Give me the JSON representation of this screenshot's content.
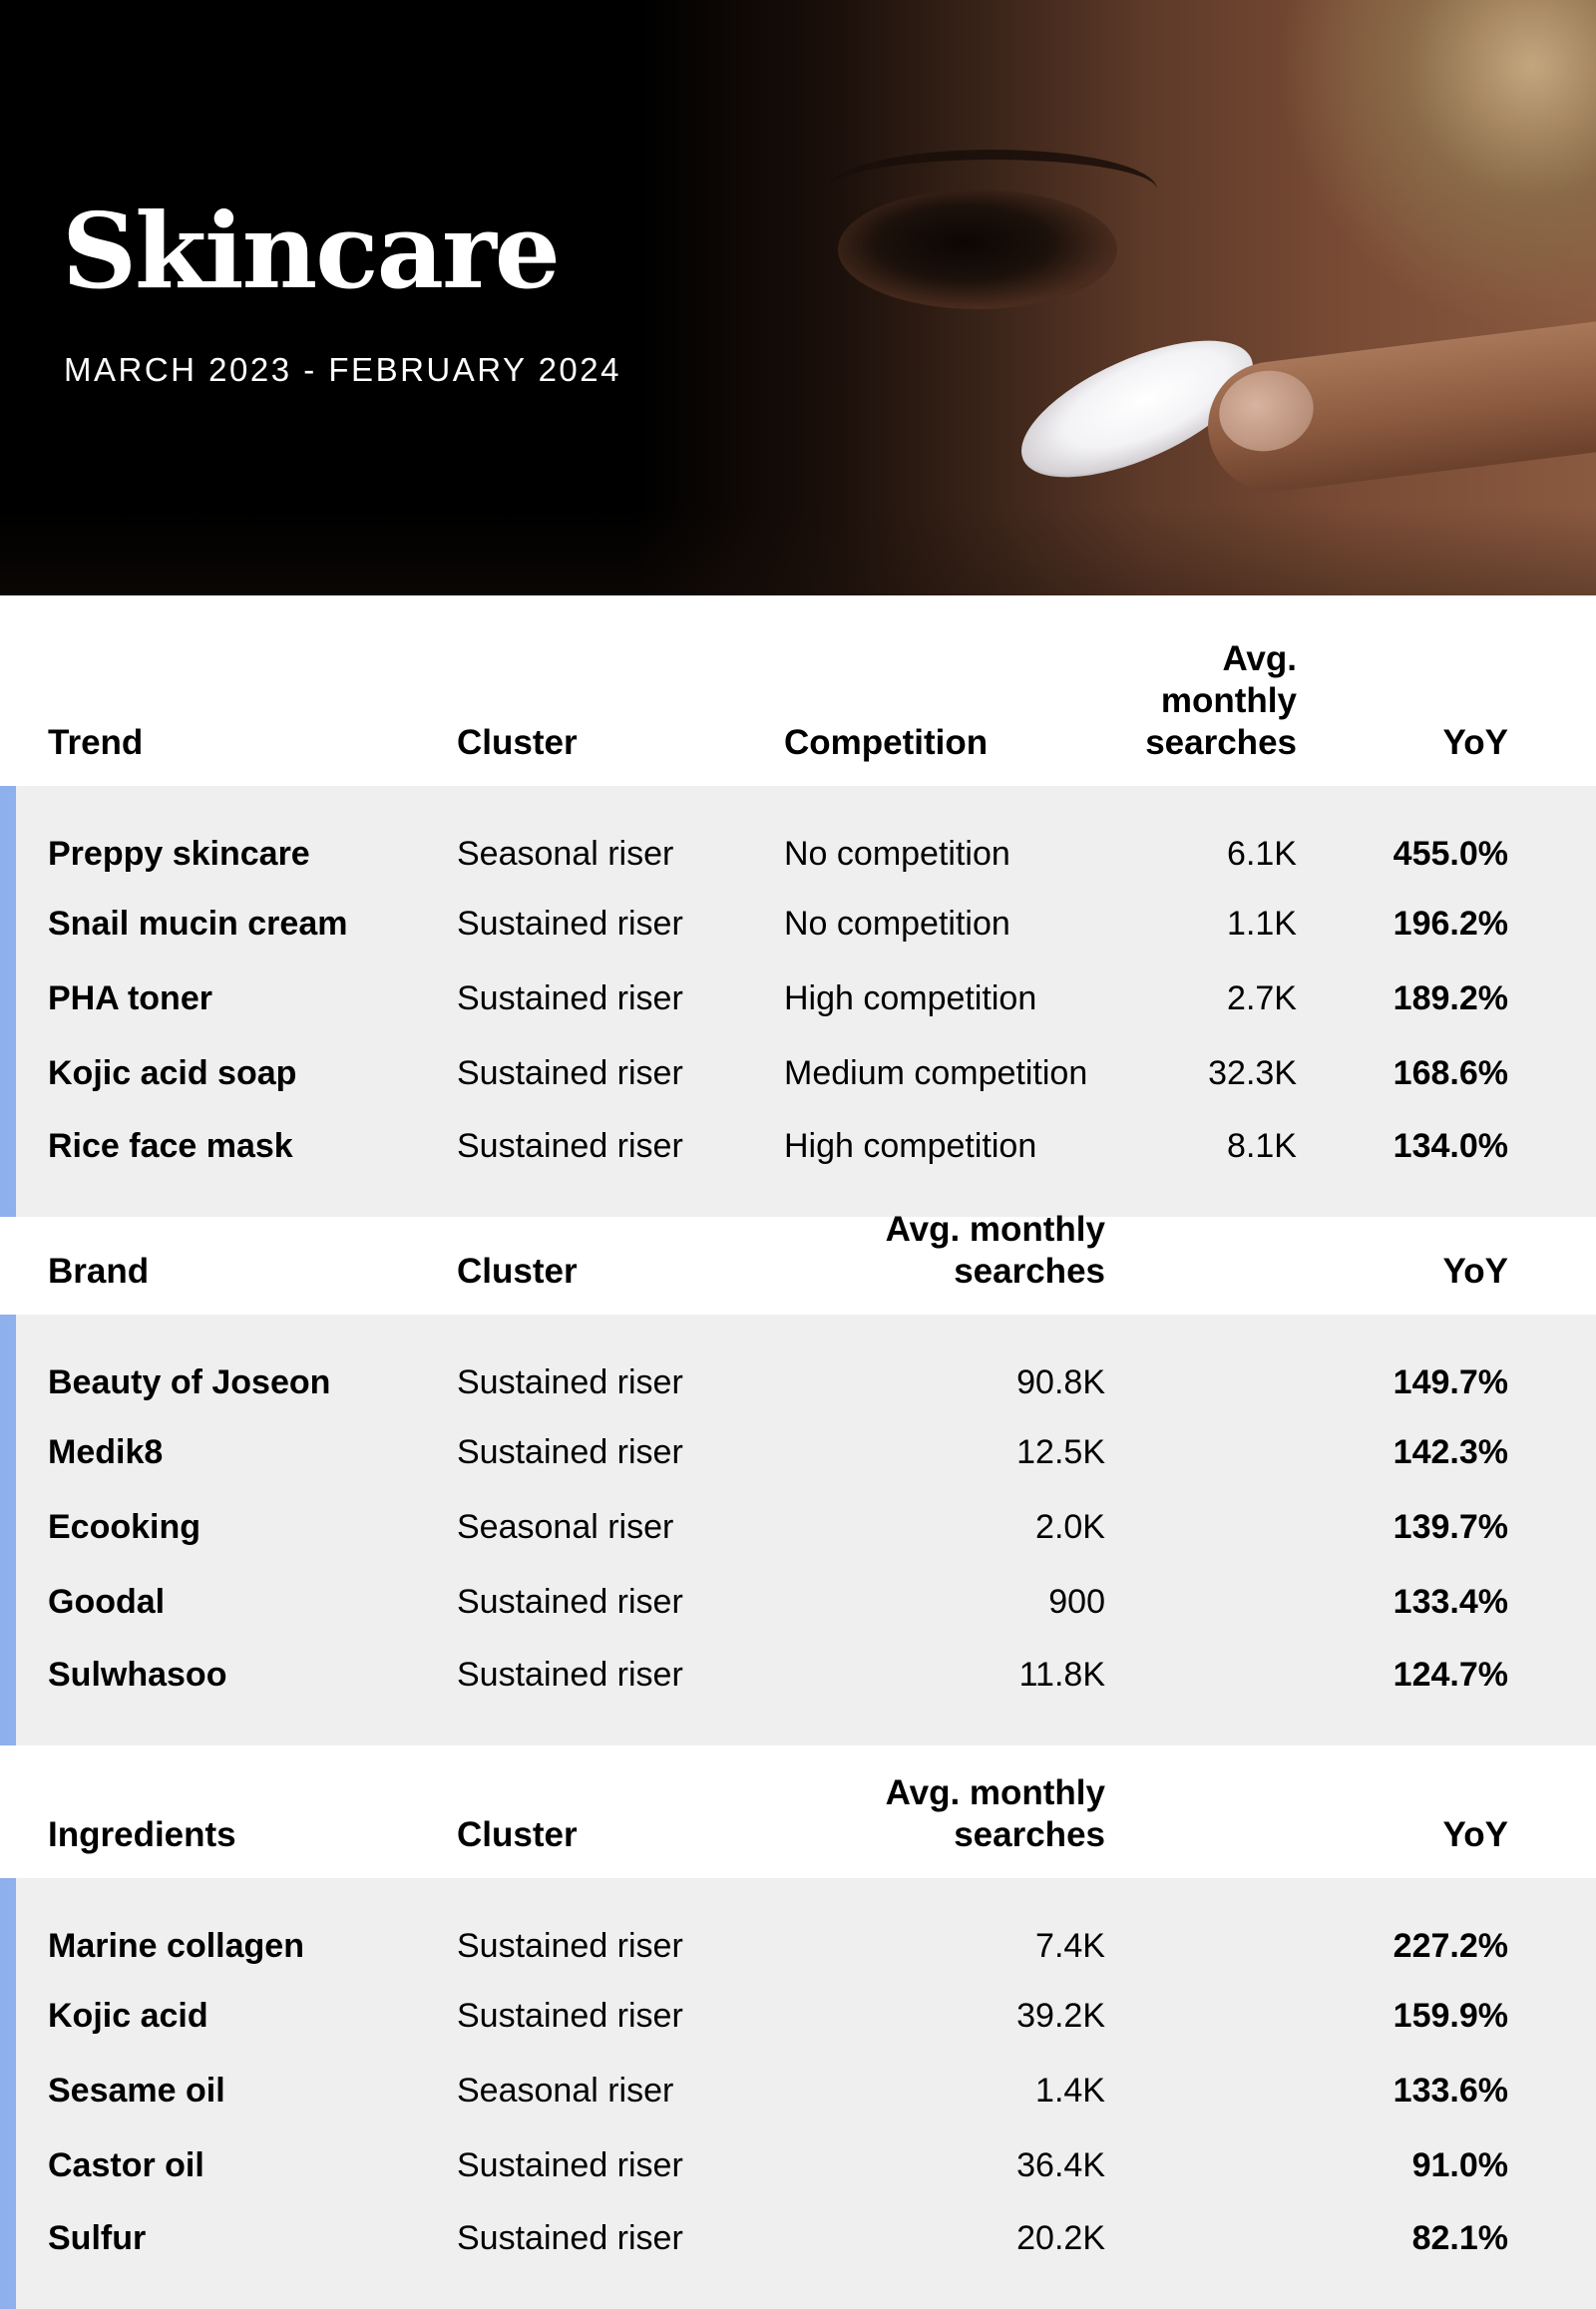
{
  "header": {
    "title": "Skincare",
    "subtitle": "MARCH 2023 - FEBRUARY 2024"
  },
  "colors": {
    "accent_bar": "#8eb0ec",
    "row_background": "#efefef",
    "hero_background": "#000000"
  },
  "trends": {
    "headers": [
      "Trend",
      "Cluster",
      "Competition",
      "Avg. monthly",
      "searches",
      "YoY"
    ],
    "rows": [
      [
        "Preppy skincare",
        "Seasonal riser",
        "No competition",
        "6.1K",
        "455.0%"
      ],
      [
        "Snail mucin cream",
        "Sustained riser",
        "No competition",
        "1.1K",
        "196.2%"
      ],
      [
        "PHA toner",
        "Sustained riser",
        "High competition",
        "2.7K",
        "189.2%"
      ],
      [
        "Kojic acid soap",
        "Sustained riser",
        "Medium competition",
        "32.3K",
        "168.6%"
      ],
      [
        "Rice face mask",
        "Sustained riser",
        "High competition",
        "8.1K",
        "134.0%"
      ]
    ]
  },
  "brands": {
    "headers": [
      "Brand",
      "Cluster",
      "Avg. monthly",
      "searches",
      "YoY"
    ],
    "rows": [
      [
        "Beauty of Joseon",
        "Sustained riser",
        "90.8K",
        "149.7%"
      ],
      [
        "Medik8",
        "Sustained riser",
        "12.5K",
        "142.3%"
      ],
      [
        "Ecooking",
        "Seasonal riser",
        "2.0K",
        "139.7%"
      ],
      [
        "Goodal",
        "Sustained riser",
        "900",
        "133.4%"
      ],
      [
        "Sulwhasoo",
        "Sustained riser",
        "11.8K",
        "124.7%"
      ]
    ]
  },
  "ingredients": {
    "headers": [
      "Ingredients",
      "Cluster",
      "Avg. monthly",
      "searches",
      "YoY"
    ],
    "rows": [
      [
        "Marine collagen",
        "Sustained riser",
        "7.4K",
        "227.2%"
      ],
      [
        "Kojic acid",
        "Sustained riser",
        "39.2K",
        "159.9%"
      ],
      [
        "Sesame oil",
        "Seasonal riser",
        "1.4K",
        "133.6%"
      ],
      [
        "Castor oil",
        "Sustained riser",
        "36.4K",
        "91.0%"
      ],
      [
        "Sulfur",
        "Sustained riser",
        "20.2K",
        "82.1%"
      ]
    ]
  }
}
